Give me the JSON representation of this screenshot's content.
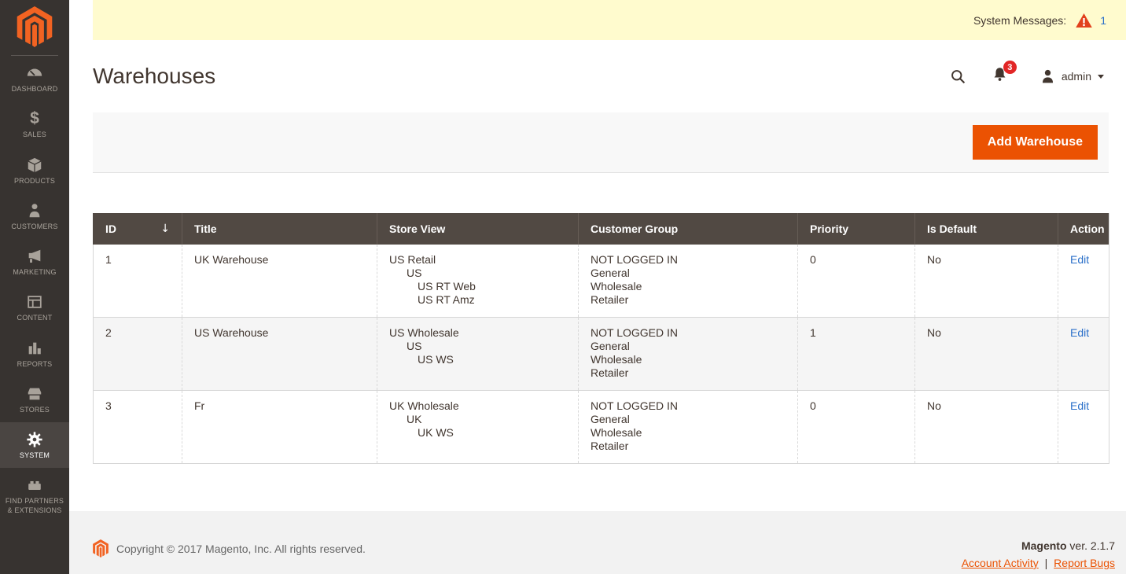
{
  "message_bar": {
    "label": "System Messages:",
    "count": "1"
  },
  "header": {
    "title": "Warehouses",
    "user_name": "admin",
    "notification_count": "3"
  },
  "toolbar": {
    "add_button_label": "Add Warehouse"
  },
  "sidebar": {
    "items": [
      {
        "id": "dashboard",
        "label": "DASHBOARD"
      },
      {
        "id": "sales",
        "label": "SALES"
      },
      {
        "id": "products",
        "label": "PRODUCTS"
      },
      {
        "id": "customers",
        "label": "CUSTOMERS"
      },
      {
        "id": "marketing",
        "label": "MARKETING"
      },
      {
        "id": "content",
        "label": "CONTENT"
      },
      {
        "id": "reports",
        "label": "REPORTS"
      },
      {
        "id": "stores",
        "label": "STORES"
      },
      {
        "id": "system",
        "label": "SYSTEM",
        "active": true
      },
      {
        "id": "find-partners",
        "label": "FIND PARTNERS & EXTENSIONS"
      }
    ]
  },
  "table": {
    "columns": [
      "ID",
      "Title",
      "Store View",
      "Customer Group",
      "Priority",
      "Is Default",
      "Action"
    ],
    "sort_indicator": "↓",
    "rows": [
      {
        "id": "1",
        "title": "UK Warehouse",
        "store_view": [
          [
            "US Retail",
            0
          ],
          [
            "US",
            1
          ],
          [
            "US RT Web",
            2
          ],
          [
            "US RT Amz",
            2
          ]
        ],
        "customer_group": [
          "NOT LOGGED IN",
          "General",
          "Wholesale",
          "Retailer"
        ],
        "priority": "0",
        "is_default": "No",
        "action": "Edit"
      },
      {
        "id": "2",
        "title": "US Warehouse",
        "store_view": [
          [
            "US Wholesale",
            0
          ],
          [
            "US",
            1
          ],
          [
            "US WS",
            2
          ]
        ],
        "customer_group": [
          "NOT LOGGED IN",
          "General",
          "Wholesale",
          "Retailer"
        ],
        "priority": "1",
        "is_default": "No",
        "action": "Edit"
      },
      {
        "id": "3",
        "title": "Fr",
        "store_view": [
          [
            "UK Wholesale",
            0
          ],
          [
            "UK",
            1
          ],
          [
            "UK WS",
            2
          ]
        ],
        "customer_group": [
          "NOT LOGGED IN",
          "General",
          "Wholesale",
          "Retailer"
        ],
        "priority": "0",
        "is_default": "No",
        "action": "Edit"
      }
    ]
  },
  "footer": {
    "copyright": "Copyright © 2017 Magento, Inc. All rights reserved.",
    "product_name": "Magento",
    "version_label": "ver. 2.1.7",
    "links_separator": "|",
    "links": [
      {
        "label": "Account Activity"
      },
      {
        "label": "Report Bugs"
      }
    ]
  },
  "colors": {
    "accent_orange": "#eb5202",
    "logo_orange": "#f26322",
    "link_blue": "#2a6fc9",
    "warning_red": "#e2401c",
    "badge_red": "#e22626",
    "sidebar_bg": "#373330",
    "sidebar_active_bg": "#4a4542",
    "table_header_bg": "#514943",
    "message_bar_bg": "#fffbce",
    "row_alt_bg": "#f5f5f5"
  }
}
